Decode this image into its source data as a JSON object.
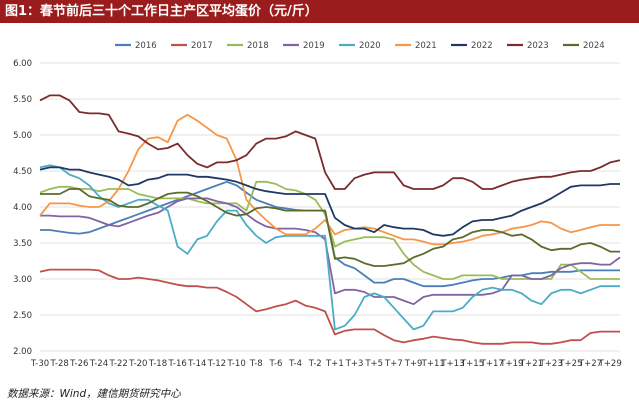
{
  "title": "图1：春节前后三十个工作日主产区平均蛋价（元/斤）",
  "source": "数据来源：Wind，建信期货研究中心",
  "chart_data": {
    "type": "line",
    "ylim": [
      2.0,
      6.0
    ],
    "y_ticks": [
      "2.00",
      "2.50",
      "3.00",
      "3.50",
      "4.00",
      "4.50",
      "5.00",
      "5.50",
      "6.00"
    ],
    "x": [
      "T-30",
      "T-29",
      "T-28",
      "T-27",
      "T-26",
      "T-25",
      "T-24",
      "T-23",
      "T-22",
      "T-21",
      "T-20",
      "T-19",
      "T-18",
      "T-17",
      "T-16",
      "T-15",
      "T-14",
      "T-13",
      "T-12",
      "T-11",
      "T-10",
      "T-9",
      "T-8",
      "T-7",
      "T-6",
      "T-5",
      "T-4",
      "T-3",
      "T-2",
      "T-1",
      "T+1",
      "T+2",
      "T+3",
      "T+4",
      "T+5",
      "T+6",
      "T+7",
      "T+8",
      "T+9",
      "T+10",
      "T+11",
      "T+12",
      "T+13",
      "T+14",
      "T+15",
      "T+16",
      "T+17",
      "T+18",
      "T+19",
      "T+20",
      "T+21",
      "T+22",
      "T+23",
      "T+24",
      "T+25",
      "T+26",
      "T+27",
      "T+28",
      "T+29",
      "T+30"
    ],
    "x_tick_labels": [
      "T-30",
      "T-28",
      "T-26",
      "T-24",
      "T-22",
      "T-20",
      "T-18",
      "T-16",
      "T-14",
      "T-12",
      "T-10",
      "T-8",
      "T-6",
      "T-4",
      "T-2",
      "T+1",
      "T+3",
      "T+5",
      "T+7",
      "T+9",
      "T+11",
      "T+13",
      "T+15",
      "T+17",
      "T+19",
      "T+21",
      "T+23",
      "T+25",
      "T+27",
      "T+29"
    ],
    "grid": true,
    "legend_position": "top",
    "series": [
      {
        "name": "2016",
        "color": "#4a7ebb",
        "values": [
          3.68,
          3.68,
          3.66,
          3.64,
          3.63,
          3.65,
          3.7,
          3.75,
          3.8,
          3.85,
          3.9,
          3.95,
          4.0,
          4.05,
          4.1,
          4.15,
          4.2,
          4.25,
          4.3,
          4.35,
          4.3,
          4.2,
          4.1,
          4.05,
          4.0,
          3.98,
          3.96,
          3.95,
          3.95,
          3.95,
          3.3,
          3.2,
          3.15,
          3.05,
          2.95,
          2.95,
          3.0,
          3.0,
          2.95,
          2.9,
          2.9,
          2.9,
          2.92,
          2.95,
          2.98,
          3.0,
          3.0,
          3.02,
          3.05,
          3.05,
          3.08,
          3.08,
          3.1,
          3.1,
          3.1,
          3.12,
          3.12,
          3.12,
          3.12,
          3.12
        ]
      },
      {
        "name": "2017",
        "color": "#c0504d",
        "values": [
          3.1,
          3.13,
          3.13,
          3.13,
          3.13,
          3.13,
          3.12,
          3.05,
          3.0,
          3.0,
          3.02,
          3.0,
          2.98,
          2.95,
          2.92,
          2.9,
          2.9,
          2.88,
          2.88,
          2.82,
          2.75,
          2.65,
          2.55,
          2.58,
          2.62,
          2.65,
          2.7,
          2.63,
          2.6,
          2.55,
          2.23,
          2.28,
          2.3,
          2.3,
          2.3,
          2.22,
          2.15,
          2.12,
          2.15,
          2.17,
          2.2,
          2.18,
          2.16,
          2.15,
          2.12,
          2.1,
          2.1,
          2.1,
          2.12,
          2.12,
          2.12,
          2.1,
          2.1,
          2.12,
          2.15,
          2.15,
          2.25,
          2.27,
          2.27,
          2.27
        ]
      },
      {
        "name": "2018",
        "color": "#9bbb59",
        "values": [
          4.2,
          4.25,
          4.28,
          4.28,
          4.25,
          4.25,
          4.22,
          4.25,
          4.25,
          4.25,
          4.18,
          4.15,
          4.12,
          4.12,
          4.12,
          4.12,
          4.08,
          4.05,
          4.05,
          4.05,
          4.05,
          3.95,
          4.35,
          4.35,
          4.32,
          4.25,
          4.23,
          4.18,
          4.1,
          3.9,
          3.45,
          3.52,
          3.55,
          3.58,
          3.58,
          3.58,
          3.55,
          3.35,
          3.2,
          3.1,
          3.05,
          3.0,
          3.0,
          3.05,
          3.05,
          3.05,
          3.05,
          3.0,
          3.0,
          3.0,
          3.0,
          3.0,
          3.0,
          3.2,
          3.2,
          3.1,
          3.0,
          3.0,
          3.0,
          3.0
        ]
      },
      {
        "name": "2019",
        "color": "#8064a2",
        "values": [
          3.88,
          3.88,
          3.87,
          3.87,
          3.87,
          3.85,
          3.8,
          3.75,
          3.73,
          3.78,
          3.83,
          3.88,
          3.92,
          4.0,
          4.08,
          4.12,
          4.12,
          4.12,
          4.08,
          4.05,
          4.0,
          3.9,
          3.8,
          3.73,
          3.7,
          3.7,
          3.7,
          3.68,
          3.65,
          3.55,
          2.8,
          2.85,
          2.85,
          2.82,
          2.75,
          2.75,
          2.75,
          2.7,
          2.65,
          2.75,
          2.78,
          2.78,
          2.78,
          2.78,
          2.78,
          2.78,
          2.8,
          2.85,
          3.05,
          3.05,
          3.0,
          3.0,
          3.05,
          3.15,
          3.2,
          3.22,
          3.22,
          3.2,
          3.2,
          3.3
        ]
      },
      {
        "name": "2020",
        "color": "#4bacc6",
        "values": [
          4.55,
          4.58,
          4.55,
          4.45,
          4.4,
          4.3,
          4.15,
          4.05,
          4.0,
          4.05,
          4.1,
          4.1,
          4.02,
          3.95,
          3.45,
          3.35,
          3.55,
          3.6,
          3.8,
          3.95,
          3.95,
          3.75,
          3.6,
          3.5,
          3.58,
          3.6,
          3.6,
          3.6,
          3.6,
          3.6,
          2.3,
          2.35,
          2.5,
          2.75,
          2.8,
          2.75,
          2.6,
          2.45,
          2.3,
          2.35,
          2.55,
          2.55,
          2.55,
          2.6,
          2.75,
          2.85,
          2.88,
          2.85,
          2.85,
          2.8,
          2.7,
          2.65,
          2.8,
          2.85,
          2.85,
          2.8,
          2.85,
          2.9,
          2.9,
          2.9
        ]
      },
      {
        "name": "2021",
        "color": "#f79646",
        "values": [
          3.88,
          4.05,
          4.05,
          4.05,
          4.02,
          4.0,
          4.0,
          4.08,
          4.25,
          4.5,
          4.8,
          4.95,
          4.97,
          4.9,
          5.2,
          5.28,
          5.2,
          5.1,
          5.0,
          4.95,
          4.65,
          4.1,
          3.95,
          3.82,
          3.7,
          3.62,
          3.62,
          3.62,
          3.7,
          3.82,
          3.62,
          3.68,
          3.7,
          3.72,
          3.7,
          3.65,
          3.6,
          3.55,
          3.55,
          3.52,
          3.48,
          3.48,
          3.5,
          3.52,
          3.55,
          3.6,
          3.62,
          3.65,
          3.7,
          3.72,
          3.75,
          3.8,
          3.78,
          3.7,
          3.65,
          3.68,
          3.72,
          3.75,
          3.75,
          3.75
        ]
      },
      {
        "name": "2022",
        "color": "#1f3864",
        "values": [
          4.52,
          4.55,
          4.55,
          4.52,
          4.52,
          4.48,
          4.45,
          4.42,
          4.38,
          4.3,
          4.32,
          4.38,
          4.4,
          4.45,
          4.45,
          4.45,
          4.42,
          4.42,
          4.4,
          4.38,
          4.35,
          4.3,
          4.25,
          4.22,
          4.2,
          4.18,
          4.18,
          4.18,
          4.18,
          4.18,
          3.85,
          3.75,
          3.7,
          3.7,
          3.65,
          3.75,
          3.72,
          3.7,
          3.7,
          3.68,
          3.62,
          3.6,
          3.62,
          3.72,
          3.8,
          3.82,
          3.82,
          3.85,
          3.88,
          3.95,
          4.0,
          4.05,
          4.12,
          4.2,
          4.28,
          4.3,
          4.3,
          4.3,
          4.32,
          4.32
        ]
      },
      {
        "name": "2023",
        "color": "#7b2b2b",
        "values": [
          5.48,
          5.55,
          5.55,
          5.48,
          5.32,
          5.3,
          5.3,
          5.28,
          5.05,
          5.02,
          4.98,
          4.88,
          4.8,
          4.82,
          4.88,
          4.72,
          4.6,
          4.55,
          4.62,
          4.62,
          4.65,
          4.72,
          4.88,
          4.95,
          4.95,
          4.98,
          5.05,
          5.0,
          4.95,
          4.48,
          4.25,
          4.25,
          4.4,
          4.45,
          4.48,
          4.48,
          4.48,
          4.3,
          4.25,
          4.25,
          4.25,
          4.3,
          4.4,
          4.4,
          4.35,
          4.25,
          4.25,
          4.3,
          4.35,
          4.38,
          4.4,
          4.42,
          4.42,
          4.45,
          4.48,
          4.5,
          4.5,
          4.55,
          4.62,
          4.65
        ]
      },
      {
        "name": "2024",
        "color": "#5b6b2b",
        "values": [
          4.18,
          4.18,
          4.18,
          4.25,
          4.25,
          4.15,
          4.12,
          4.1,
          4.02,
          4.0,
          4.0,
          4.05,
          4.12,
          4.18,
          4.2,
          4.2,
          4.15,
          4.08,
          4.0,
          3.92,
          3.88,
          3.9,
          3.98,
          4.0,
          3.98,
          3.95,
          3.95,
          3.95,
          3.95,
          3.95,
          3.28,
          3.3,
          3.28,
          3.22,
          3.18,
          3.18,
          3.2,
          3.22,
          3.3,
          3.35,
          3.42,
          3.45,
          3.55,
          3.58,
          3.65,
          3.68,
          3.68,
          3.65,
          3.6,
          3.62,
          3.55,
          3.45,
          3.4,
          3.42,
          3.42,
          3.48,
          3.5,
          3.45,
          3.38,
          3.38
        ]
      }
    ]
  }
}
